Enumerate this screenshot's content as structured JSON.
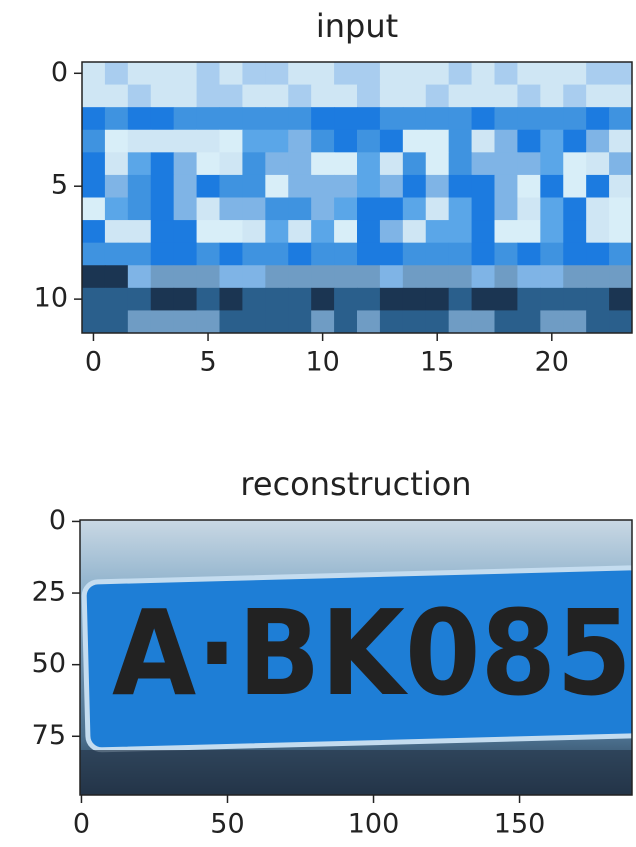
{
  "chart_data": [
    {
      "type": "image",
      "title": "input",
      "xlim": [
        -0.5,
        23.5
      ],
      "ylim": [
        -0.5,
        11.5
      ],
      "y_inverted": true,
      "xticks": [
        0,
        5,
        10,
        15,
        20
      ],
      "yticks": [
        0,
        5,
        10
      ]
    },
    {
      "type": "image",
      "title": "reconstruction",
      "image_text": "A·BK085",
      "xlim": [
        -0.5,
        188.5
      ],
      "ylim": [
        -0.5,
        95.5
      ],
      "y_inverted": true,
      "xticks": [
        0,
        50,
        100,
        150
      ],
      "yticks": [
        0,
        25,
        50,
        75
      ]
    }
  ]
}
